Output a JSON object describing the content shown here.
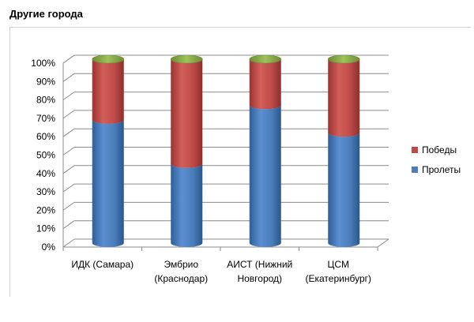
{
  "page": {
    "title": "Другие города"
  },
  "chart_data": {
    "type": "bar",
    "stacked": true,
    "style": "3d-cylinder",
    "title": "Другие города",
    "categories": [
      [
        "ИДК (Самара)"
      ],
      [
        "Эмбрио",
        "(Краснодар)"
      ],
      [
        "АИСТ (Нижний",
        "Новгород)"
      ],
      [
        "ЦСМ",
        "(Екатеринбург)"
      ]
    ],
    "series": [
      {
        "name": "Пролеты",
        "values": [
          67,
          43,
          75,
          60
        ],
        "color": "#4a7ebb"
      },
      {
        "name": "Победы",
        "values": [
          33,
          57,
          25,
          40
        ],
        "color": "#be4b48"
      }
    ],
    "top_cap_color": "#8db04a",
    "y_ticks": [
      "0%",
      "10%",
      "20%",
      "30%",
      "40%",
      "50%",
      "60%",
      "70%",
      "80%",
      "90%",
      "100%"
    ],
    "ylim": [
      0,
      100
    ],
    "grid": true,
    "legend_position": "right"
  }
}
